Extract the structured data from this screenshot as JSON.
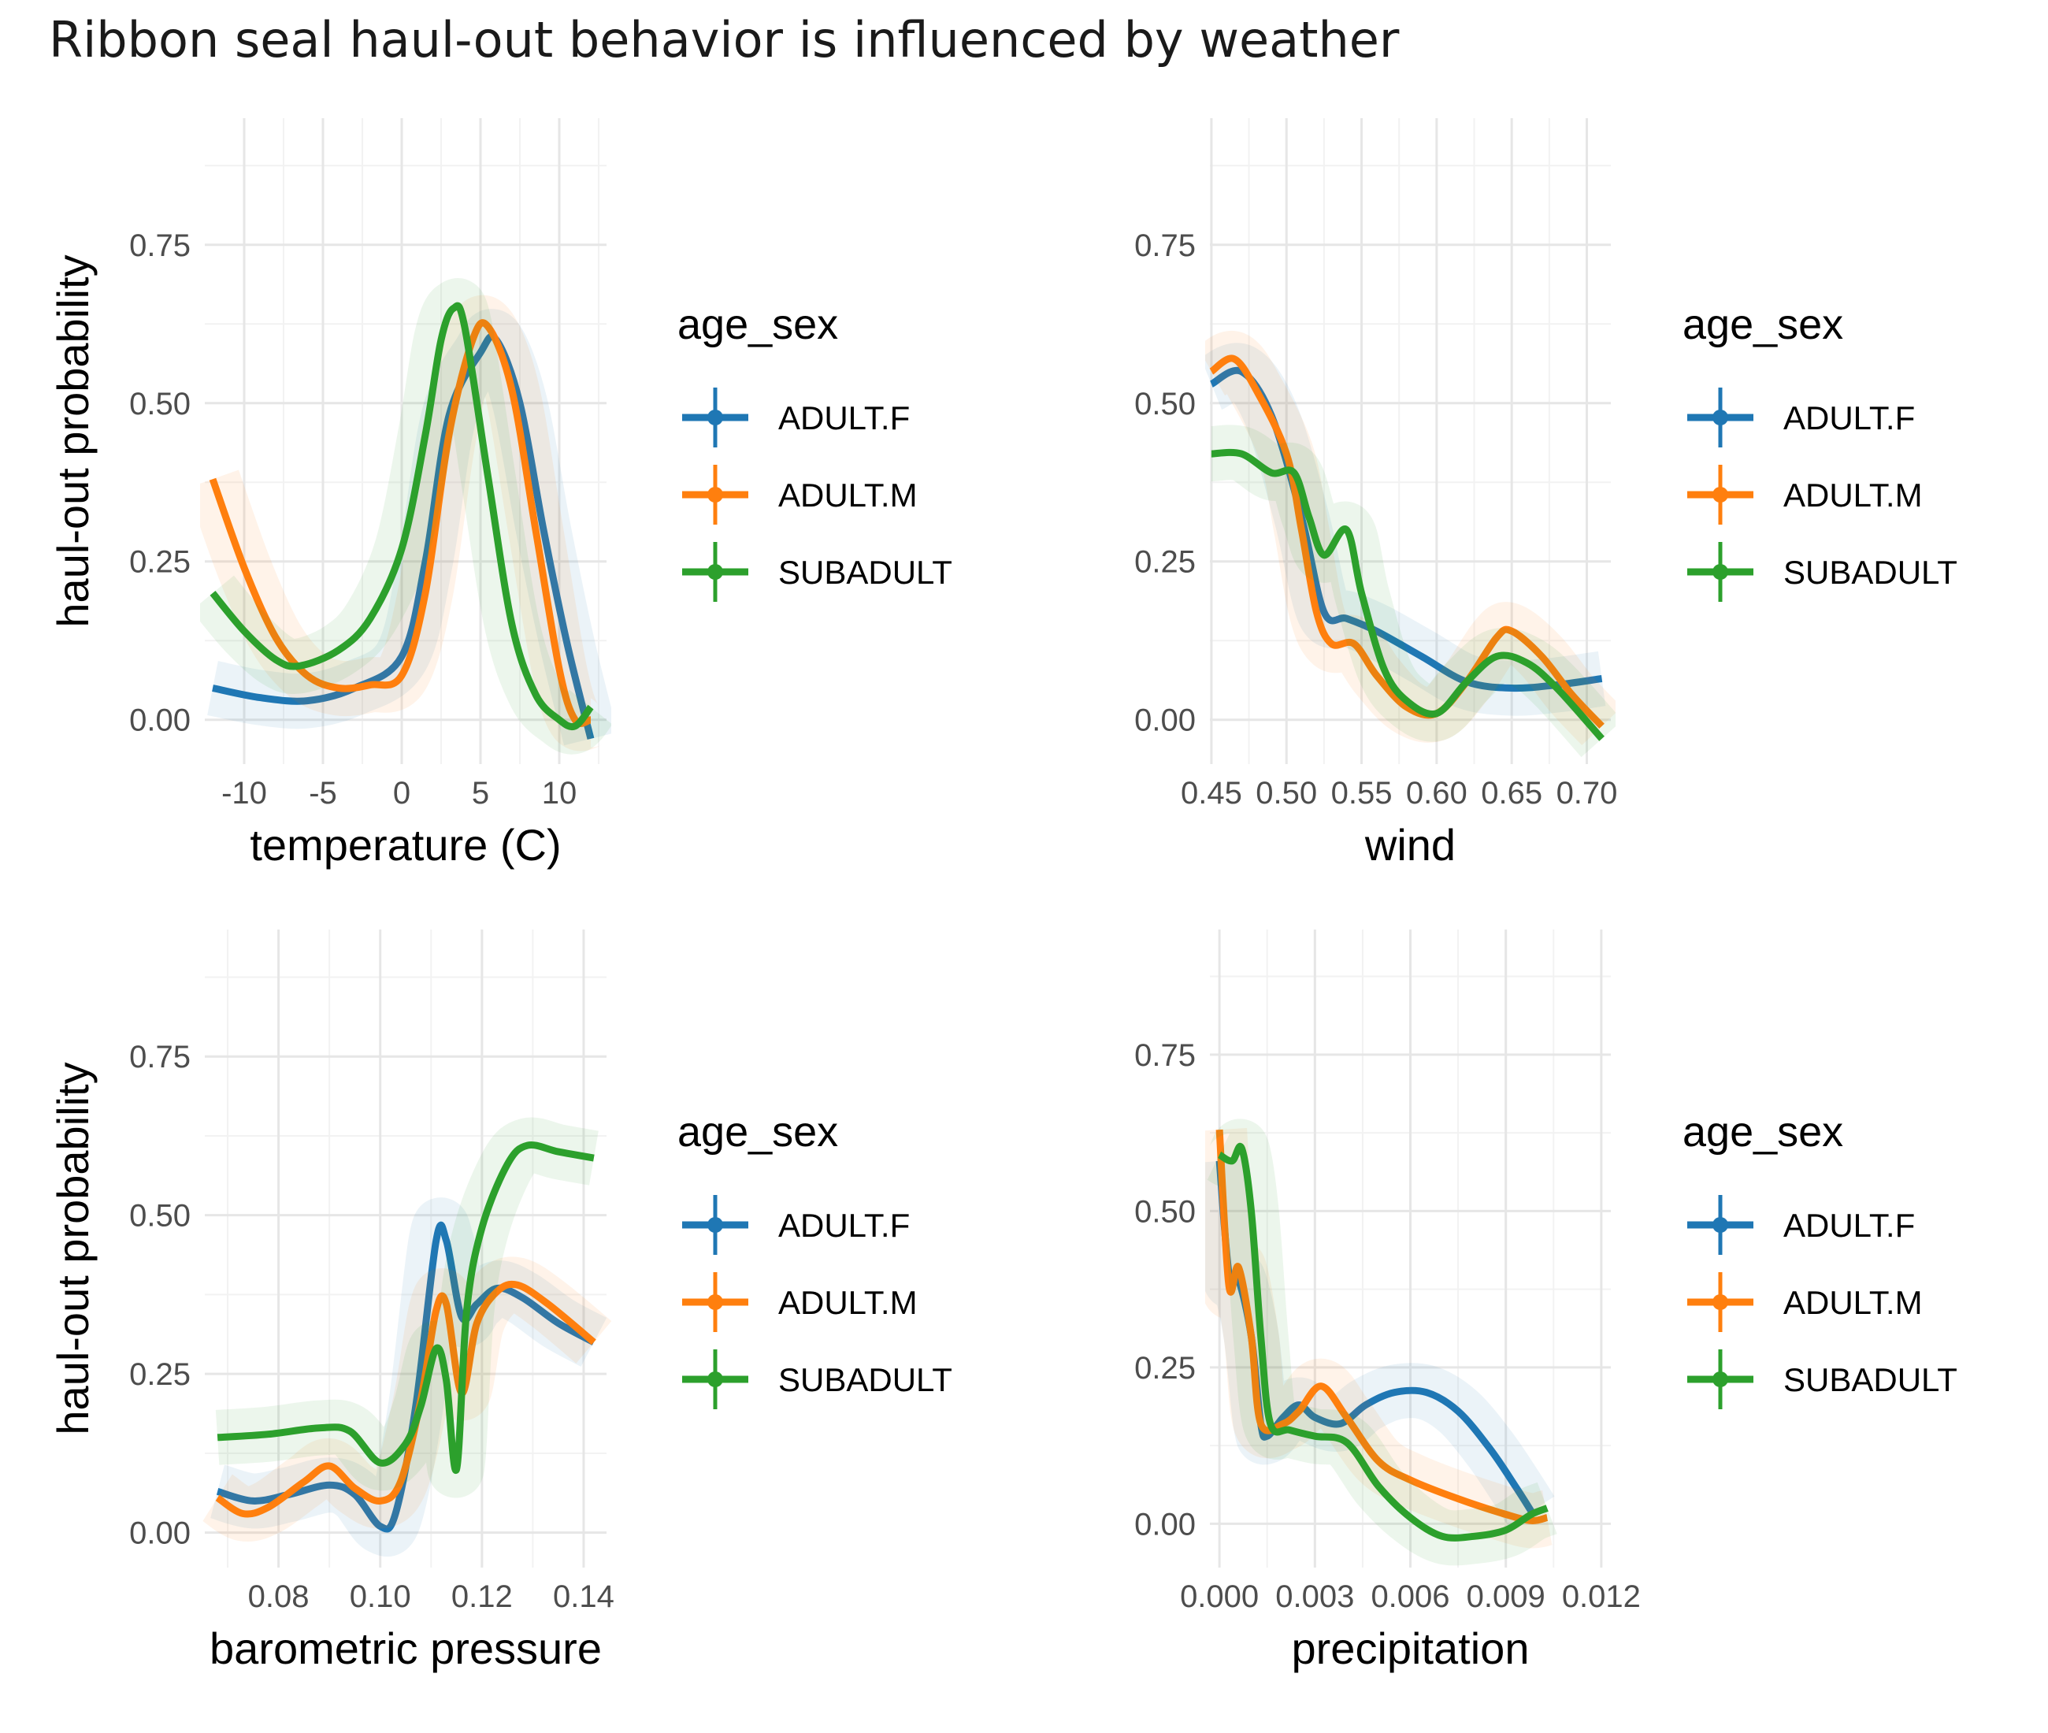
{
  "title": "Ribbon seal haul-out behavior is influenced by weather",
  "colors": {
    "ADULT.F": "#1f77b4",
    "ADULT.M": "#ff7f0e",
    "SUBADULT": "#2ca02c"
  },
  "legend": {
    "title": "age_sex",
    "items": [
      "ADULT.F",
      "ADULT.M",
      "SUBADULT"
    ]
  },
  "chart_data": [
    {
      "type": "line",
      "xlabel": "temperature (C)",
      "ylabel": "haul-out probability",
      "xlim": [
        -12.5,
        13
      ],
      "ylim": [
        -0.07,
        0.95
      ],
      "xticks": [
        -10,
        -5,
        0,
        5,
        10
      ],
      "xtick_labels": [
        "-10",
        "-5",
        "0",
        "5",
        "10"
      ],
      "yticks": [
        0,
        0.25,
        0.5,
        0.75
      ],
      "ytick_labels": [
        "0.00",
        "0.25",
        "0.50",
        "0.75"
      ],
      "series": [
        {
          "name": "ADULT.F",
          "points": [
            [
              -12,
              0.05
            ],
            [
              -9,
              0.035
            ],
            [
              -6,
              0.03
            ],
            [
              -3,
              0.05
            ],
            [
              0,
              0.1
            ],
            [
              1.5,
              0.25
            ],
            [
              3,
              0.48
            ],
            [
              5,
              0.58
            ],
            [
              6,
              0.6
            ],
            [
              7.5,
              0.5
            ],
            [
              9,
              0.3
            ],
            [
              10.5,
              0.12
            ],
            [
              12,
              -0.03
            ]
          ]
        },
        {
          "name": "ADULT.M",
          "points": [
            [
              -12,
              0.38
            ],
            [
              -10,
              0.24
            ],
            [
              -8,
              0.13
            ],
            [
              -6,
              0.07
            ],
            [
              -4,
              0.05
            ],
            [
              -2,
              0.055
            ],
            [
              0,
              0.07
            ],
            [
              1.5,
              0.2
            ],
            [
              3,
              0.45
            ],
            [
              4.5,
              0.6
            ],
            [
              5.5,
              0.62
            ],
            [
              7,
              0.52
            ],
            [
              8.5,
              0.3
            ],
            [
              10,
              0.08
            ],
            [
              11,
              0
            ],
            [
              12,
              0
            ]
          ]
        },
        {
          "name": "SUBADULT",
          "points": [
            [
              -12,
              0.2
            ],
            [
              -10,
              0.14
            ],
            [
              -8,
              0.095
            ],
            [
              -6.5,
              0.085
            ],
            [
              -4,
              0.11
            ],
            [
              -2,
              0.16
            ],
            [
              0,
              0.27
            ],
            [
              1.5,
              0.45
            ],
            [
              2.5,
              0.6
            ],
            [
              3.3,
              0.65
            ],
            [
              4,
              0.62
            ],
            [
              5.5,
              0.38
            ],
            [
              7,
              0.15
            ],
            [
              8.5,
              0.04
            ],
            [
              10,
              0
            ],
            [
              11,
              -0.01
            ],
            [
              12,
              0.02
            ]
          ]
        }
      ]
    },
    {
      "type": "line",
      "xlabel": "wind",
      "ylabel": "",
      "xlim": [
        0.449,
        0.716
      ],
      "ylim": [
        -0.07,
        0.95
      ],
      "xticks": [
        0.45,
        0.5,
        0.55,
        0.6,
        0.65,
        0.7
      ],
      "xtick_labels": [
        "0.45",
        "0.50",
        "0.55",
        "0.60",
        "0.65",
        "0.70"
      ],
      "series": [
        {
          "name": "ADULT.F",
          "points": [
            [
              0.45,
              0.53
            ],
            [
              0.47,
              0.55
            ],
            [
              0.49,
              0.48
            ],
            [
              0.51,
              0.32
            ],
            [
              0.525,
              0.17
            ],
            [
              0.54,
              0.16
            ],
            [
              0.56,
              0.14
            ],
            [
              0.59,
              0.1
            ],
            [
              0.62,
              0.06
            ],
            [
              0.65,
              0.05
            ],
            [
              0.68,
              0.055
            ],
            [
              0.71,
              0.065
            ]
          ]
        },
        {
          "name": "ADULT.M",
          "points": [
            [
              0.45,
              0.55
            ],
            [
              0.465,
              0.57
            ],
            [
              0.48,
              0.52
            ],
            [
              0.5,
              0.42
            ],
            [
              0.51,
              0.3
            ],
            [
              0.52,
              0.17
            ],
            [
              0.53,
              0.12
            ],
            [
              0.545,
              0.12
            ],
            [
              0.56,
              0.07
            ],
            [
              0.58,
              0.02
            ],
            [
              0.6,
              0.01
            ],
            [
              0.62,
              0.06
            ],
            [
              0.64,
              0.13
            ],
            [
              0.65,
              0.14
            ],
            [
              0.67,
              0.1
            ],
            [
              0.69,
              0.04
            ],
            [
              0.71,
              -0.01
            ]
          ]
        },
        {
          "name": "SUBADULT",
          "points": [
            [
              0.45,
              0.42
            ],
            [
              0.47,
              0.42
            ],
            [
              0.49,
              0.39
            ],
            [
              0.505,
              0.39
            ],
            [
              0.515,
              0.32
            ],
            [
              0.525,
              0.26
            ],
            [
              0.54,
              0.3
            ],
            [
              0.55,
              0.2
            ],
            [
              0.565,
              0.08
            ],
            [
              0.58,
              0.03
            ],
            [
              0.6,
              0.01
            ],
            [
              0.62,
              0.06
            ],
            [
              0.64,
              0.1
            ],
            [
              0.66,
              0.09
            ],
            [
              0.68,
              0.05
            ],
            [
              0.71,
              -0.03
            ]
          ]
        }
      ]
    },
    {
      "type": "line",
      "xlabel": "barometric pressure",
      "ylabel": "haul-out probability",
      "xlim": [
        0.0655,
        0.1445
      ],
      "ylim": [
        -0.055,
        0.95
      ],
      "xticks": [
        0.08,
        0.1,
        0.12,
        0.14
      ],
      "xtick_labels": [
        "0.08",
        "0.10",
        "0.12",
        "0.14"
      ],
      "series": [
        {
          "name": "ADULT.F",
          "points": [
            [
              0.068,
              0.065
            ],
            [
              0.075,
              0.05
            ],
            [
              0.082,
              0.06
            ],
            [
              0.09,
              0.075
            ],
            [
              0.095,
              0.06
            ],
            [
              0.1,
              0.01
            ],
            [
              0.103,
              0.03
            ],
            [
              0.107,
              0.2
            ],
            [
              0.111,
              0.46
            ],
            [
              0.113,
              0.46
            ],
            [
              0.116,
              0.34
            ],
            [
              0.119,
              0.36
            ],
            [
              0.123,
              0.385
            ],
            [
              0.128,
              0.37
            ],
            [
              0.135,
              0.33
            ],
            [
              0.142,
              0.3
            ]
          ]
        },
        {
          "name": "ADULT.M",
          "points": [
            [
              0.068,
              0.055
            ],
            [
              0.073,
              0.03
            ],
            [
              0.078,
              0.04
            ],
            [
              0.085,
              0.08
            ],
            [
              0.09,
              0.105
            ],
            [
              0.095,
              0.07
            ],
            [
              0.1,
              0.05
            ],
            [
              0.104,
              0.08
            ],
            [
              0.108,
              0.21
            ],
            [
              0.111,
              0.35
            ],
            [
              0.113,
              0.36
            ],
            [
              0.116,
              0.22
            ],
            [
              0.119,
              0.33
            ],
            [
              0.123,
              0.38
            ],
            [
              0.127,
              0.39
            ],
            [
              0.133,
              0.36
            ],
            [
              0.142,
              0.3
            ]
          ]
        },
        {
          "name": "SUBADULT",
          "points": [
            [
              0.068,
              0.15
            ],
            [
              0.078,
              0.155
            ],
            [
              0.088,
              0.165
            ],
            [
              0.094,
              0.16
            ],
            [
              0.1,
              0.11
            ],
            [
              0.105,
              0.14
            ],
            [
              0.108,
              0.2
            ],
            [
              0.111,
              0.29
            ],
            [
              0.113,
              0.24
            ],
            [
              0.115,
              0.1
            ],
            [
              0.117,
              0.35
            ],
            [
              0.12,
              0.48
            ],
            [
              0.125,
              0.58
            ],
            [
              0.129,
              0.61
            ],
            [
              0.135,
              0.6
            ],
            [
              0.142,
              0.59
            ]
          ]
        }
      ]
    },
    {
      "type": "line",
      "xlabel": "precipitation",
      "ylabel": "",
      "xlim": [
        -0.0003,
        0.0123
      ],
      "ylim": [
        -0.07,
        0.95
      ],
      "xticks": [
        0,
        0.003,
        0.006,
        0.009,
        0.012
      ],
      "xtick_labels": [
        "0.000",
        "0.003",
        "0.006",
        "0.009",
        "0.012"
      ],
      "series": [
        {
          "name": "ADULT.F",
          "points": [
            [
              0,
              0.58
            ],
            [
              0.0003,
              0.4
            ],
            [
              0.0006,
              0.39
            ],
            [
              0.001,
              0.3
            ],
            [
              0.0013,
              0.16
            ],
            [
              0.0015,
              0.14
            ],
            [
              0.002,
              0.17
            ],
            [
              0.0025,
              0.19
            ],
            [
              0.003,
              0.17
            ],
            [
              0.0038,
              0.16
            ],
            [
              0.0046,
              0.19
            ],
            [
              0.0055,
              0.21
            ],
            [
              0.0065,
              0.21
            ],
            [
              0.0075,
              0.18
            ],
            [
              0.0085,
              0.12
            ],
            [
              0.0093,
              0.06
            ],
            [
              0.0098,
              0.02
            ]
          ]
        },
        {
          "name": "ADULT.M",
          "points": [
            [
              0,
              0.63
            ],
            [
              0.0003,
              0.38
            ],
            [
              0.0006,
              0.41
            ],
            [
              0.001,
              0.3
            ],
            [
              0.0013,
              0.16
            ],
            [
              0.002,
              0.16
            ],
            [
              0.0025,
              0.18
            ],
            [
              0.0032,
              0.22
            ],
            [
              0.004,
              0.17
            ],
            [
              0.005,
              0.1
            ],
            [
              0.006,
              0.07
            ],
            [
              0.0075,
              0.04
            ],
            [
              0.009,
              0.015
            ],
            [
              0.0098,
              0.005
            ],
            [
              0.0103,
              0.01
            ]
          ]
        },
        {
          "name": "SUBADULT",
          "points": [
            [
              0,
              0.59
            ],
            [
              0.0004,
              0.58
            ],
            [
              0.0007,
              0.6
            ],
            [
              0.001,
              0.5
            ],
            [
              0.0013,
              0.3
            ],
            [
              0.0016,
              0.16
            ],
            [
              0.0022,
              0.15
            ],
            [
              0.003,
              0.14
            ],
            [
              0.004,
              0.13
            ],
            [
              0.005,
              0.06
            ],
            [
              0.006,
              0.01
            ],
            [
              0.007,
              -0.02
            ],
            [
              0.008,
              -0.02
            ],
            [
              0.009,
              -0.01
            ],
            [
              0.0098,
              0.015
            ],
            [
              0.0103,
              0.025
            ]
          ]
        }
      ]
    }
  ]
}
